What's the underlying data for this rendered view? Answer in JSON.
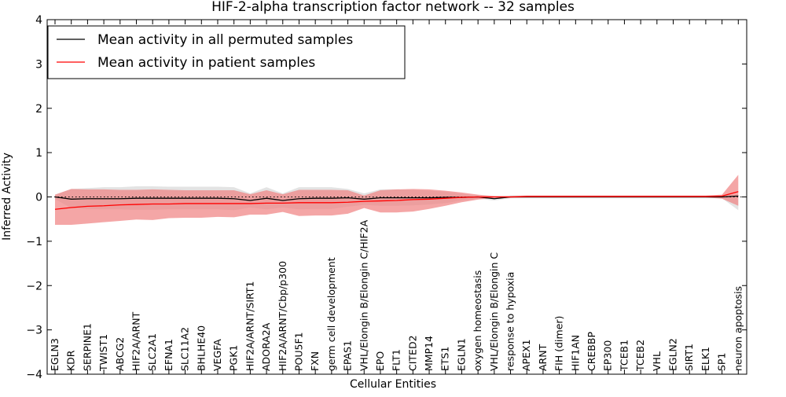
{
  "chart_data": {
    "type": "line",
    "title": "HIF-2-alpha transcription factor network -- 32 samples",
    "xlabel": "Cellular Entities",
    "ylabel": "Inferred Activity",
    "ylim": [
      -4,
      4
    ],
    "yticks": [
      4,
      3,
      2,
      1,
      0,
      -1,
      -2,
      -3,
      -4
    ],
    "ytick_labels": [
      "4",
      "3",
      "2",
      "1",
      "0",
      "−1",
      "−2",
      "−3",
      "−4"
    ],
    "reference_line": {
      "y": 0,
      "style": "dotted"
    },
    "legend": {
      "placement": "top-left",
      "entries": [
        {
          "label": "Mean activity in all permuted samples",
          "color": "#000000"
        },
        {
          "label": "Mean activity in patient samples",
          "color": "#ff0000"
        }
      ]
    },
    "categories": [
      "EGLN3",
      "KDR",
      "SERPINE1",
      "TWIST1",
      "ABCG2",
      "HIF2A/ARNT",
      "SLC2A1",
      "EFNA1",
      "SLC11A2",
      "BHLHE40",
      "VEGFA",
      "PGK1",
      "HIF2A/ARNT/SIRT1",
      "ADORA2A",
      "HIF2A/ARNT/Cbp/p300",
      "POU5F1",
      "FXN",
      "germ cell development",
      "EPAS1",
      "VHL/Elongin B/Elongin C/HIF2A",
      "EPO",
      "FLT1",
      "CITED2",
      "MMP14",
      "ETS1",
      "EGLN1",
      "oxygen homeostasis",
      "VHL/Elongin B/Elongin C",
      "response to hypoxia",
      "APEX1",
      "ARNT",
      "FIH (dimer)",
      "HIF1AN",
      "CREBBP",
      "EP300",
      "TCEB1",
      "TCEB2",
      "VHL",
      "EGLN2",
      "SIRT1",
      "ELK1",
      "SP1",
      "neuron apoptosis"
    ],
    "series": [
      {
        "name": "Mean activity in all permuted samples",
        "color": "#000000",
        "band_color": "#d9d9d9",
        "values": [
          0.0,
          -0.05,
          -0.04,
          -0.04,
          -0.04,
          -0.03,
          -0.03,
          -0.03,
          -0.03,
          -0.03,
          -0.03,
          -0.04,
          -0.08,
          -0.03,
          -0.08,
          -0.04,
          -0.03,
          -0.03,
          -0.02,
          -0.05,
          -0.02,
          -0.02,
          -0.02,
          -0.02,
          -0.01,
          -0.01,
          0.0,
          -0.04,
          0.0,
          0.0,
          0.0,
          0.0,
          0.0,
          0.0,
          0.0,
          0.0,
          0.0,
          0.0,
          0.0,
          0.0,
          0.0,
          0.0,
          0.02
        ],
        "upper": [
          0.05,
          0.18,
          0.2,
          0.22,
          0.22,
          0.24,
          0.24,
          0.23,
          0.23,
          0.23,
          0.23,
          0.22,
          0.08,
          0.22,
          0.08,
          0.22,
          0.22,
          0.22,
          0.18,
          0.08,
          0.17,
          0.17,
          0.16,
          0.14,
          0.12,
          0.07,
          0.03,
          0.0,
          0.03,
          0.03,
          0.03,
          0.03,
          0.03,
          0.03,
          0.03,
          0.03,
          0.03,
          0.03,
          0.03,
          0.03,
          0.03,
          0.03,
          0.05
        ],
        "lower": [
          -0.05,
          -0.25,
          -0.27,
          -0.28,
          -0.28,
          -0.29,
          -0.29,
          -0.28,
          -0.28,
          -0.28,
          -0.28,
          -0.3,
          -0.24,
          -0.28,
          -0.24,
          -0.28,
          -0.27,
          -0.27,
          -0.22,
          -0.18,
          -0.2,
          -0.2,
          -0.19,
          -0.17,
          -0.14,
          -0.08,
          -0.04,
          -0.08,
          -0.03,
          -0.03,
          -0.03,
          -0.03,
          -0.03,
          -0.03,
          -0.03,
          -0.03,
          -0.03,
          -0.03,
          -0.03,
          -0.03,
          -0.03,
          -0.03,
          -0.3
        ]
      },
      {
        "name": "Mean activity in patient samples",
        "color": "#ff0000",
        "band_color": "#f08080",
        "values": [
          -0.28,
          -0.24,
          -0.21,
          -0.2,
          -0.18,
          -0.17,
          -0.16,
          -0.16,
          -0.15,
          -0.15,
          -0.15,
          -0.15,
          -0.15,
          -0.14,
          -0.14,
          -0.13,
          -0.13,
          -0.13,
          -0.12,
          -0.1,
          -0.09,
          -0.08,
          -0.06,
          -0.05,
          -0.03,
          -0.01,
          0.0,
          0.0,
          0.0,
          0.01,
          0.01,
          0.01,
          0.01,
          0.01,
          0.01,
          0.01,
          0.01,
          0.01,
          0.01,
          0.01,
          0.01,
          0.02,
          0.12
        ],
        "upper": [
          0.05,
          0.18,
          0.17,
          0.17,
          0.16,
          0.16,
          0.17,
          0.16,
          0.15,
          0.15,
          0.15,
          0.15,
          0.06,
          0.15,
          0.06,
          0.16,
          0.16,
          0.16,
          0.15,
          0.03,
          0.15,
          0.17,
          0.18,
          0.17,
          0.14,
          0.1,
          0.05,
          0.02,
          0.02,
          0.03,
          0.03,
          0.03,
          0.03,
          0.03,
          0.03,
          0.03,
          0.03,
          0.03,
          0.03,
          0.03,
          0.03,
          0.05,
          0.5
        ],
        "lower": [
          -0.63,
          -0.63,
          -0.6,
          -0.57,
          -0.54,
          -0.51,
          -0.52,
          -0.48,
          -0.47,
          -0.47,
          -0.45,
          -0.46,
          -0.4,
          -0.4,
          -0.34,
          -0.43,
          -0.42,
          -0.42,
          -0.38,
          -0.25,
          -0.35,
          -0.35,
          -0.33,
          -0.27,
          -0.2,
          -0.12,
          -0.06,
          -0.02,
          -0.02,
          -0.01,
          -0.01,
          -0.01,
          -0.01,
          -0.01,
          -0.01,
          -0.01,
          -0.01,
          -0.01,
          -0.01,
          -0.01,
          -0.01,
          -0.04,
          -0.2
        ]
      }
    ]
  }
}
